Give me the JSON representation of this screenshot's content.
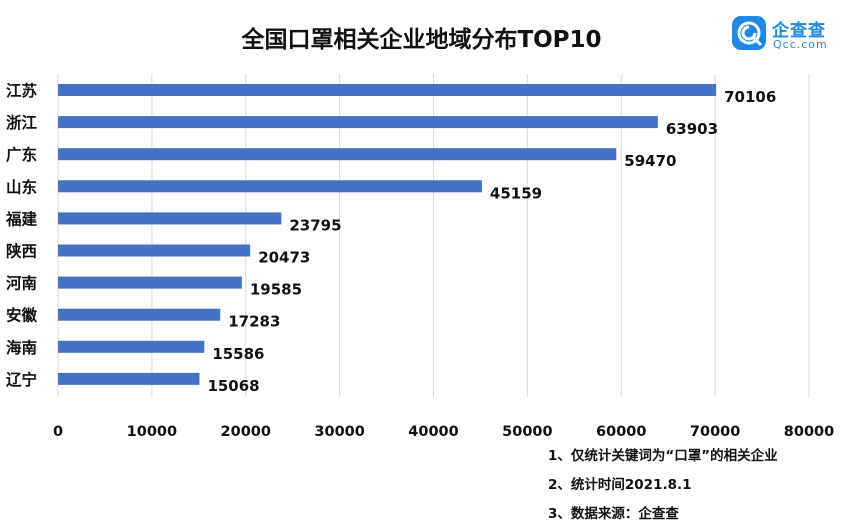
{
  "chart_data": {
    "type": "bar",
    "orientation": "horizontal",
    "title": "全国口罩相关企业地域分布TOP10",
    "categories": [
      "江苏",
      "浙江",
      "广东",
      "山东",
      "福建",
      "陕西",
      "河南",
      "安徽",
      "海南",
      "辽宁"
    ],
    "values": [
      70106,
      63903,
      59470,
      45159,
      23795,
      20473,
      19585,
      17283,
      15586,
      15068
    ],
    "value_labels": [
      "70106",
      "63903",
      "59470",
      "45159",
      "23795",
      "20473",
      "19585",
      "17283",
      "15586",
      "15068"
    ],
    "xlim": [
      0,
      80000
    ],
    "x_ticks": [
      0,
      10000,
      20000,
      30000,
      40000,
      50000,
      60000,
      70000,
      80000
    ],
    "x_tick_labels": [
      "0",
      "10000",
      "20000",
      "30000",
      "40000",
      "50000",
      "60000",
      "70000",
      "80000"
    ],
    "grid": "vertical",
    "legend": "none",
    "bar_color": "#4472c4",
    "grid_color": "#d9d9d9"
  },
  "logo": {
    "brand": "企查查",
    "domain": "Qcc.com",
    "color": "#1e88e5"
  },
  "notes": [
    "1、仅统计关键词为“口罩”的相关企业",
    "2、统计时间2021.8.1",
    "3、数据来源：企查查"
  ]
}
